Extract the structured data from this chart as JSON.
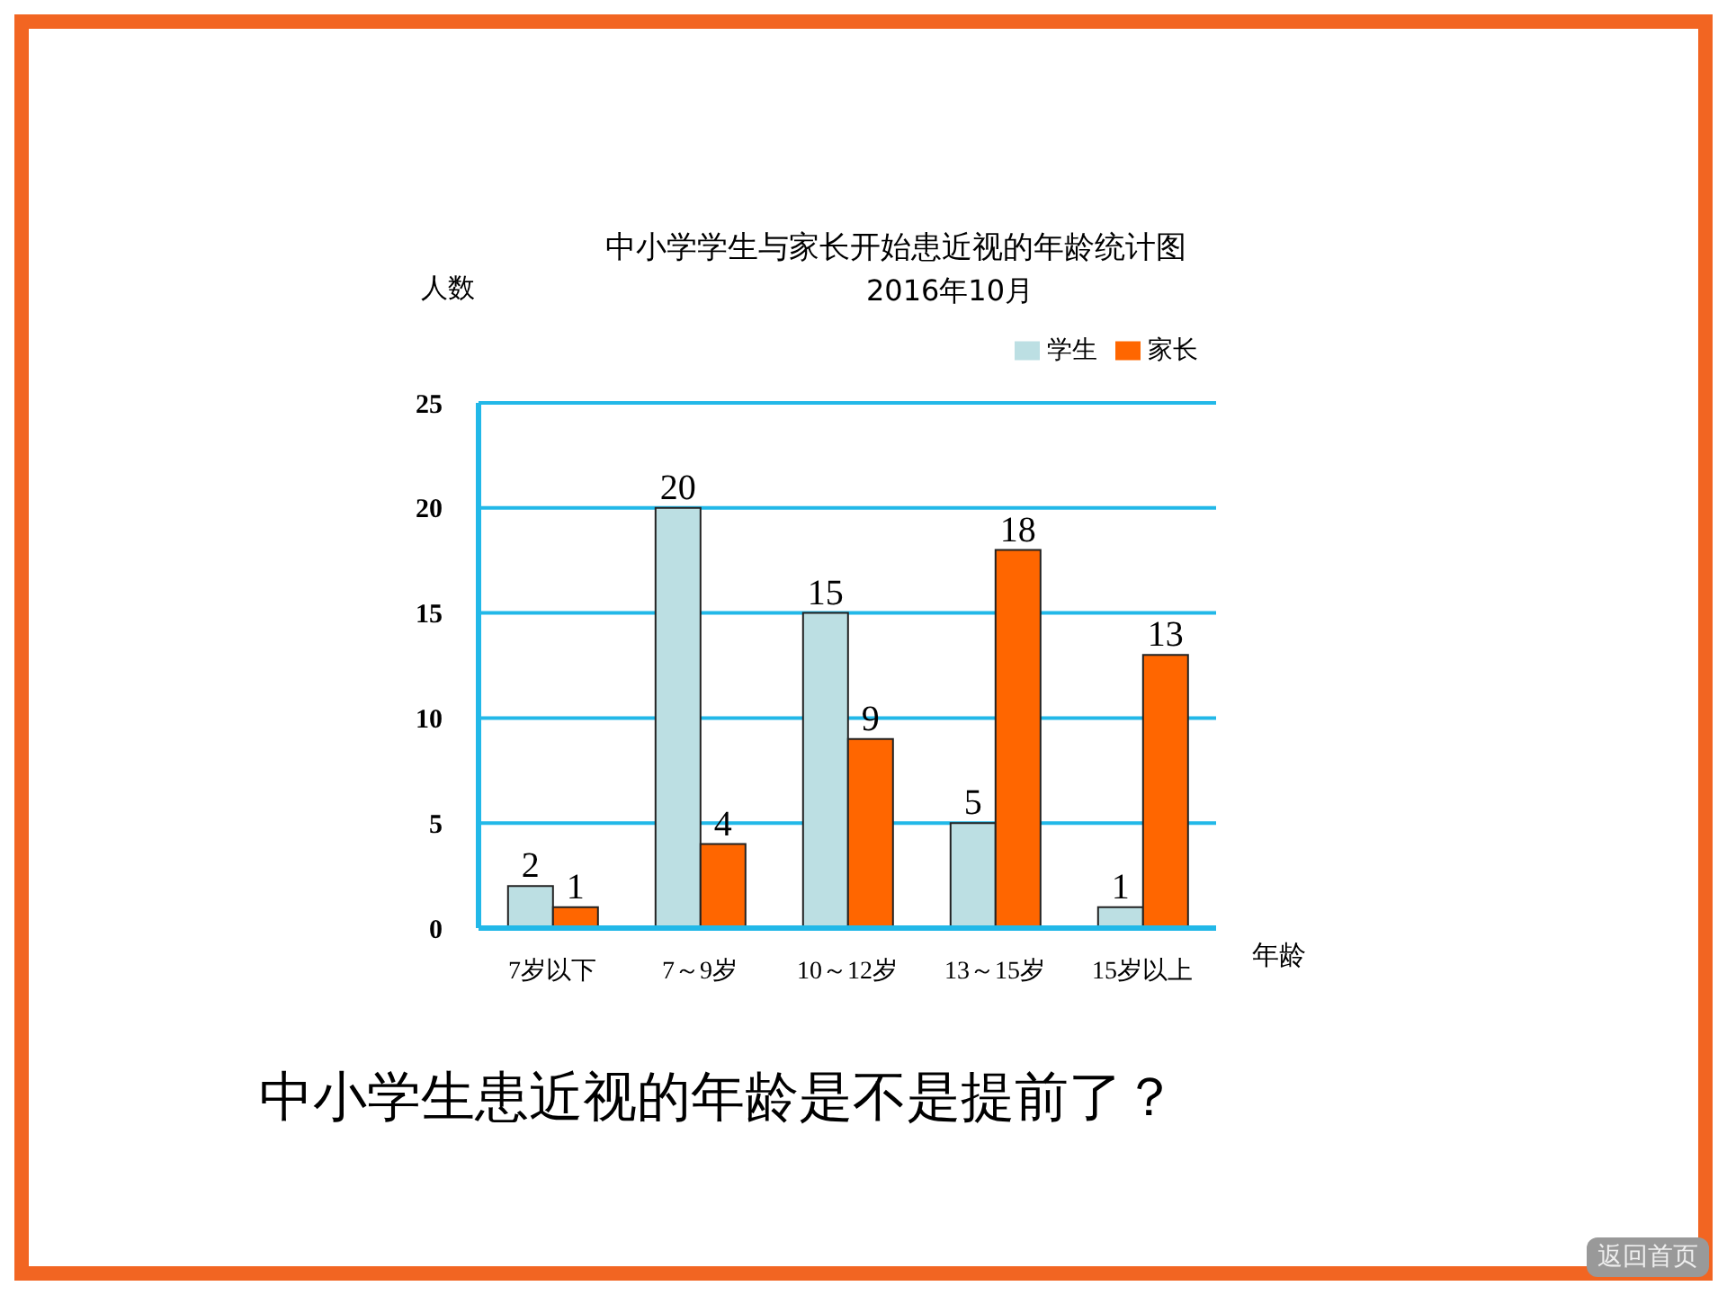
{
  "chart_data": {
    "type": "bar",
    "title": "中小学学生与家长开始患近视的年龄统计图",
    "subtitle": "2016年10月",
    "xlabel": "年龄",
    "ylabel": "人数",
    "categories": [
      "7岁以下",
      "7～9岁",
      "10～12岁",
      "13～15岁",
      "15岁以上"
    ],
    "series": [
      {
        "name": "学生",
        "color": "#bcdfe3",
        "values": [
          2,
          20,
          15,
          5,
          1
        ]
      },
      {
        "name": "家长",
        "color": "#ff6600",
        "values": [
          1,
          4,
          9,
          18,
          13
        ]
      }
    ],
    "ylim": [
      0,
      25
    ],
    "yticks": [
      0,
      5,
      10,
      15,
      20,
      25
    ],
    "grid": "y",
    "legend": "top right",
    "data_labels": true,
    "annotations": [
      "中小学生患近视的年龄是不是提前了？",
      "返回首页"
    ]
  }
}
